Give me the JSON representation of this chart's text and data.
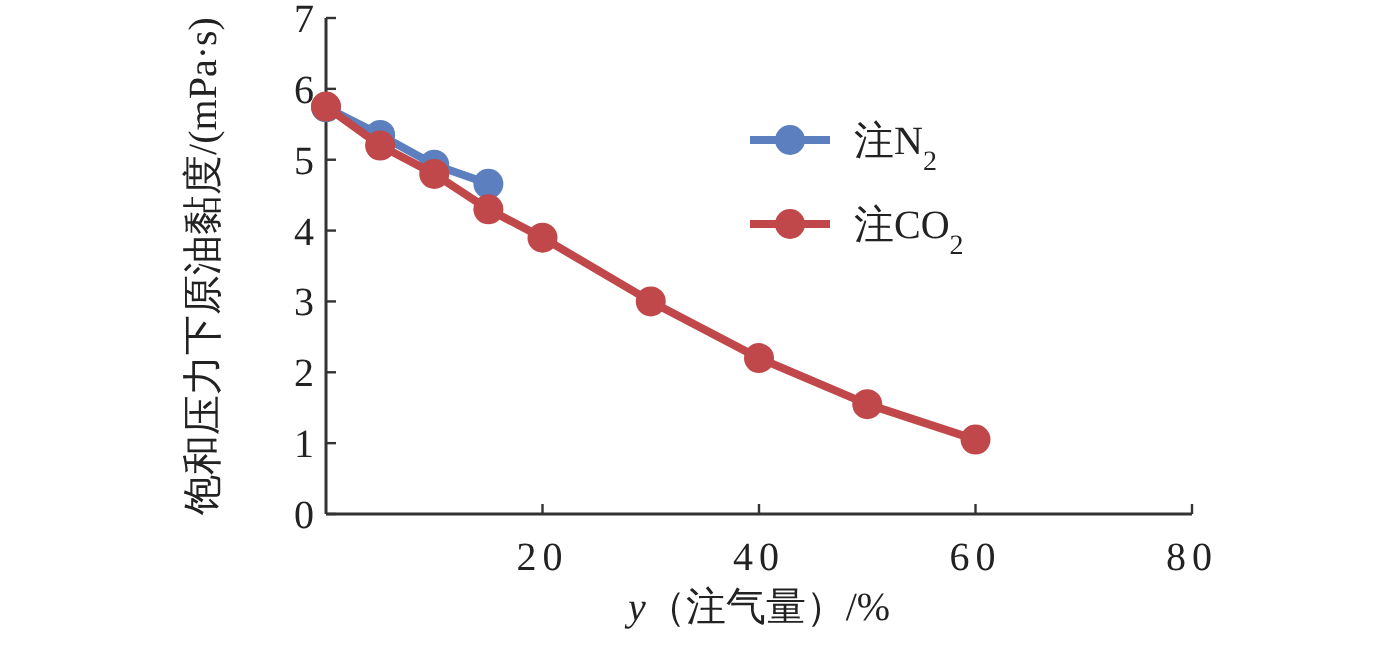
{
  "chart_data": {
    "type": "line",
    "xlabel": "*y*（注气量）/%",
    "ylabel": "饱和压力下原油黏度/(mPa·s)",
    "xlim": [
      0,
      80
    ],
    "xticks": [
      20,
      40,
      60,
      80
    ],
    "ylim": [
      0,
      7
    ],
    "yticks": [
      0,
      1,
      2,
      3,
      4,
      5,
      6,
      7
    ],
    "marker": "circle",
    "line_style": "solid",
    "legend": "top right",
    "grid": false,
    "series": [
      {
        "name": "注N$_{2}$",
        "color": "#5b7fbf",
        "x": [
          0,
          5,
          10,
          15
        ],
        "values": [
          5.74,
          5.35,
          4.93,
          4.66
        ]
      },
      {
        "name": "注CO$_{2}$",
        "color": "#c0484a",
        "x": [
          0,
          5,
          10,
          15,
          20,
          30,
          40,
          50,
          60
        ],
        "values": [
          5.75,
          5.2,
          4.8,
          4.3,
          3.9,
          3.0,
          2.2,
          1.55,
          1.05
        ]
      }
    ]
  }
}
